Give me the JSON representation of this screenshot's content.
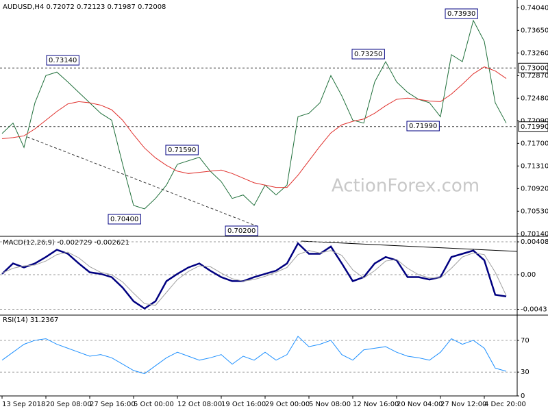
{
  "watermark": "ActionForex.com",
  "chart_data": [
    {
      "type": "line",
      "title": "AUDUSD,H4  0.72072 0.72123 0.71987 0.72008",
      "categories": [
        "13 Sep 2018",
        null,
        null,
        null,
        "20 Sep 08:00",
        null,
        null,
        null,
        "27 Sep 16:00",
        null,
        null,
        null,
        "5 Oct 00:00",
        null,
        null,
        null,
        "12 Oct 08:00",
        null,
        null,
        null,
        "19 Oct 16:00",
        null,
        null,
        null,
        "29 Oct 00:00",
        null,
        null,
        null,
        "5 Nov 08:00",
        null,
        null,
        null,
        "12 Nov 16:00",
        null,
        null,
        null,
        "20 Nov 04:00",
        null,
        null,
        null,
        "27 Nov 12:00",
        null,
        null,
        null,
        "4 Dec 20:00",
        null,
        null
      ],
      "series": [
        {
          "color": "#1f6f3a",
          "values": [
            0.7187,
            0.7205,
            0.7163,
            0.724,
            0.7287,
            0.7293,
            0.7276,
            0.7258,
            0.724,
            0.7222,
            0.721,
            0.7134,
            0.7063,
            0.7057,
            0.7075,
            0.7098,
            0.7134,
            0.714,
            0.7146,
            0.7122,
            0.7104,
            0.7075,
            0.7081,
            0.7063,
            0.7098,
            0.7081,
            0.7098,
            0.7216,
            0.7222,
            0.724,
            0.7287,
            0.7252,
            0.721,
            0.7205,
            0.7276,
            0.7311,
            0.7276,
            0.7258,
            0.7246,
            0.724,
            0.7216,
            0.7323,
            0.7311,
            0.7382,
            0.7346,
            0.724,
            0.7205
          ]
        },
        {
          "color": "#e0302c",
          "values": [
            0.7178,
            0.718,
            0.7183,
            0.7195,
            0.721,
            0.7225,
            0.7238,
            0.7242,
            0.724,
            0.7236,
            0.7228,
            0.721,
            0.7185,
            0.7162,
            0.7145,
            0.7132,
            0.7122,
            0.7118,
            0.712,
            0.7122,
            0.7124,
            0.7118,
            0.711,
            0.7102,
            0.7098,
            0.7094,
            0.7094,
            0.7115,
            0.714,
            0.7165,
            0.7188,
            0.7202,
            0.7208,
            0.7212,
            0.7222,
            0.7235,
            0.7246,
            0.7248,
            0.7246,
            0.7243,
            0.7242,
            0.7255,
            0.7272,
            0.729,
            0.7302,
            0.7295,
            0.7282
          ]
        }
      ],
      "ylim": [
        0.7012,
        0.7415
      ],
      "yticks": [
        {
          "value": 0.7404,
          "label": "0.74040"
        },
        {
          "value": 0.7365,
          "label": "0.73650"
        },
        {
          "value": 0.7326,
          "label": "0.73260"
        },
        {
          "value": 0.7287,
          "label": "0.72870"
        },
        {
          "value": 0.7248,
          "label": "0.72480"
        },
        {
          "value": 0.7209,
          "label": "0.72090"
        },
        {
          "value": 0.717,
          "label": "0.71700"
        },
        {
          "value": 0.7131,
          "label": "0.71310"
        },
        {
          "value": 0.7092,
          "label": "0.70920"
        },
        {
          "value": 0.7053,
          "label": "0.70530"
        },
        {
          "value": 0.7014,
          "label": "0.70140"
        }
      ],
      "levels": [
        {
          "value": 0.73,
          "label": "0.73000"
        },
        {
          "value": 0.7199,
          "label": "0.71990"
        }
      ],
      "annotations": [
        "0.73140",
        "0.73250",
        "0.73930",
        "0.71590",
        "0.70400",
        "0.70200",
        "0.71990"
      ]
    },
    {
      "type": "line",
      "title": "MACD(12,26,9) -0.002729 -0.002621",
      "series": [
        {
          "color": "#000080",
          "values": [
            0.0001,
            0.0014,
            0.0009,
            0.0014,
            0.0022,
            0.0031,
            0.0026,
            0.0014,
            0.0003,
            0.0001,
            -0.0003,
            -0.0016,
            -0.0033,
            -0.0042,
            -0.0033,
            -0.0008,
            0.0001,
            0.0009,
            0.0014,
            0.0005,
            -0.0003,
            -0.0008,
            -0.0008,
            -0.0003,
            0.0001,
            0.0005,
            0.0014,
            0.0039,
            0.0026,
            0.0026,
            0.0035,
            0.0014,
            -0.0008,
            -0.0003,
            0.0014,
            0.0022,
            0.0018,
            -0.0003,
            -0.0003,
            -0.0006,
            -0.0003,
            0.0022,
            0.0026,
            0.003,
            0.0018,
            -0.0025,
            -0.0027
          ]
        },
        {
          "color": "#a0a0a0",
          "values": [
            0.0002,
            0.0008,
            0.0011,
            0.0012,
            0.0017,
            0.0025,
            0.0028,
            0.0021,
            0.001,
            0.0003,
            0,
            -0.0009,
            -0.0023,
            -0.0036,
            -0.0038,
            -0.0022,
            -0.0006,
            0.0004,
            0.0011,
            0.001,
            0.0002,
            -0.0005,
            -0.0008,
            -0.0006,
            -0.0002,
            0.0003,
            0.0009,
            0.0025,
            0.003,
            0.0027,
            0.003,
            0.0024,
            0.0006,
            -0.0004,
            0.0005,
            0.0017,
            0.0019,
            0.0008,
            0,
            -0.0004,
            -0.0004,
            0.0008,
            0.0022,
            0.0027,
            0.0025,
            0.0003,
            -0.0026
          ]
        }
      ],
      "ylim": [
        -0.00485,
        0.0046
      ],
      "yticks": [
        0.004085,
        {
          "value": 0,
          "label": "0.00"
        },
        -0.0043
      ]
    },
    {
      "type": "line",
      "title": "RSI(14) 31.2367",
      "series": [
        {
          "color": "#1e90ff",
          "values": [
            45,
            55,
            65,
            70,
            72,
            65,
            60,
            55,
            50,
            52,
            48,
            40,
            32,
            28,
            38,
            48,
            55,
            50,
            45,
            48,
            52,
            40,
            50,
            45,
            55,
            45,
            52,
            75,
            62,
            65,
            70,
            52,
            45,
            58,
            60,
            62,
            55,
            50,
            48,
            45,
            55,
            72,
            65,
            70,
            60,
            35,
            31
          ]
        }
      ],
      "ylim": [
        0,
        100
      ],
      "yticks": [
        70,
        30,
        0
      ]
    }
  ]
}
